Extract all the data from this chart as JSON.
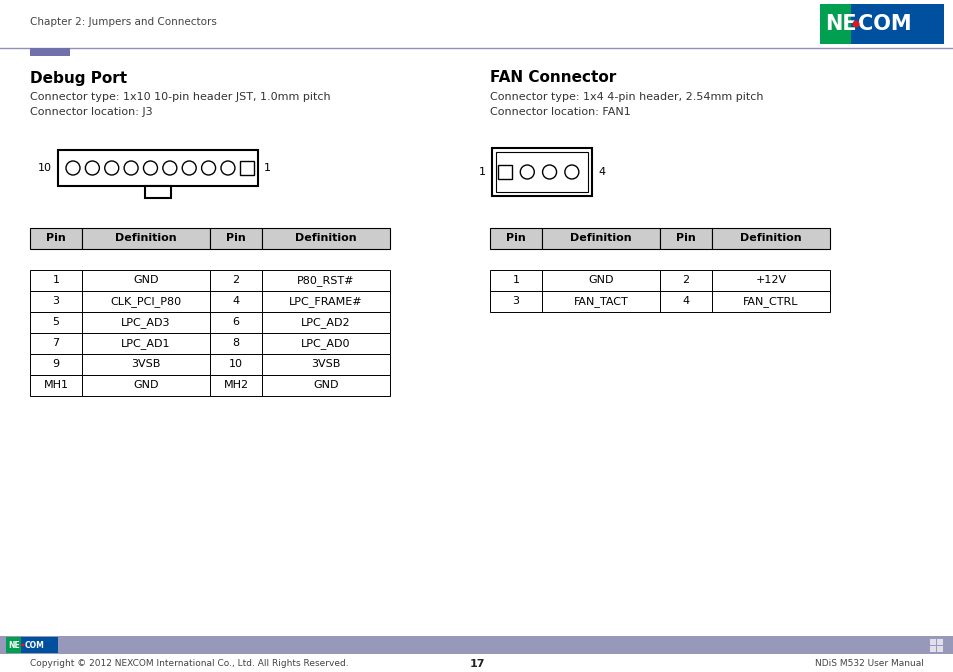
{
  "page_title": "Chapter 2: Jumpers and Connectors",
  "page_number": "17",
  "footer_left": "Copyright © 2012 NEXCOM International Co., Ltd. All Rights Reserved.",
  "footer_right": "NDiS M532 User Manual",
  "bg_color": "#ffffff",
  "header_line_color": "#9090bb",
  "header_accent_color": "#7070aa",
  "footer_bar_color": "#9898bb",
  "debug_port": {
    "title": "Debug Port",
    "line1": "Connector type: 1x10 10-pin header JST, 1.0mm pitch",
    "line2": "Connector location: J3"
  },
  "fan_connector": {
    "title": "FAN Connector",
    "line1": "Connector type: 1x4 4-pin header, 2.54mm pitch",
    "line2": "Connector location: FAN1"
  },
  "debug_table_headers": [
    "Pin",
    "Definition",
    "Pin",
    "Definition"
  ],
  "debug_table_rows": [
    [
      "1",
      "GND",
      "2",
      "P80_RST#"
    ],
    [
      "3",
      "CLK_PCI_P80",
      "4",
      "LPC_FRAME#"
    ],
    [
      "5",
      "LPC_AD3",
      "6",
      "LPC_AD2"
    ],
    [
      "7",
      "LPC_AD1",
      "8",
      "LPC_AD0"
    ],
    [
      "9",
      "3VSB",
      "10",
      "3VSB"
    ],
    [
      "MH1",
      "GND",
      "MH2",
      "GND"
    ]
  ],
  "fan_table_headers": [
    "Pin",
    "Definition",
    "Pin",
    "Definition"
  ],
  "fan_table_rows": [
    [
      "1",
      "GND",
      "2",
      "+12V"
    ],
    [
      "3",
      "FAN_TACT",
      "4",
      "FAN_CTRL"
    ]
  ],
  "nexcom_colors": {
    "green": "#00a050",
    "blue": "#0050a0",
    "red": "#dd1a18"
  }
}
